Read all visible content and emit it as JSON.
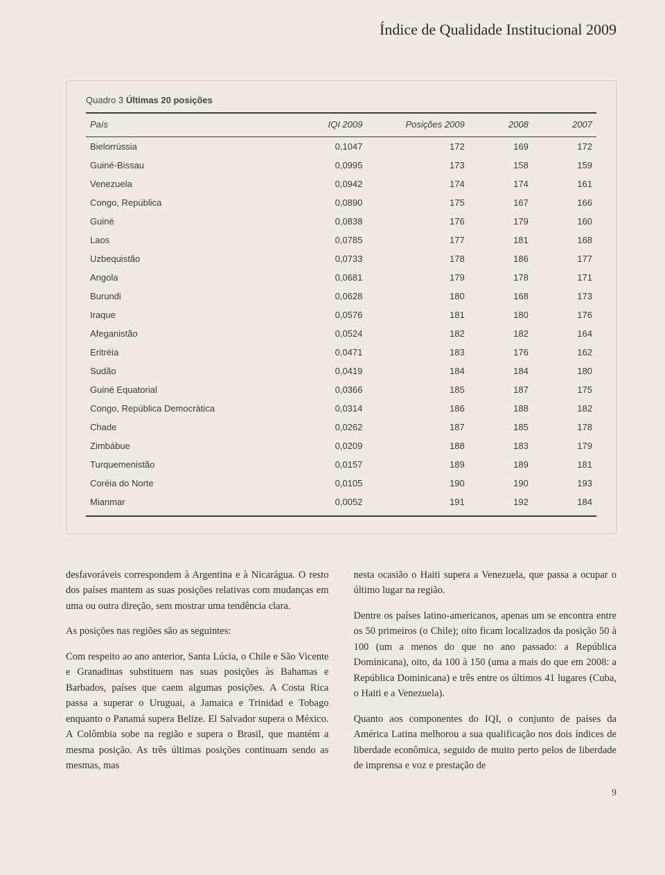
{
  "header": {
    "title": "Índice de Qualidade Institucional 2009"
  },
  "table": {
    "type": "table",
    "caption_prefix": "Quadro 3",
    "caption_title": "Últimas 20 posições",
    "columns": [
      "País",
      "IQI 2009",
      "Posições 2009",
      "2008",
      "2007"
    ],
    "rows": [
      [
        "Bielorrússia",
        "0,1047",
        "172",
        "169",
        "172"
      ],
      [
        "Guiné-Bissau",
        "0,0995",
        "173",
        "158",
        "159"
      ],
      [
        "Venezuela",
        "0,0942",
        "174",
        "174",
        "161"
      ],
      [
        "Congo, República",
        "0,0890",
        "175",
        "167",
        "166"
      ],
      [
        "Guiné",
        "0,0838",
        "176",
        "179",
        "160"
      ],
      [
        "Laos",
        "0,0785",
        "177",
        "181",
        "168"
      ],
      [
        "Uzbequistão",
        "0,0733",
        "178",
        "186",
        "177"
      ],
      [
        "Angola",
        "0,0681",
        "179",
        "178",
        "171"
      ],
      [
        "Burundi",
        "0,0628",
        "180",
        "168",
        "173"
      ],
      [
        "Iraque",
        "0,0576",
        "181",
        "180",
        "176"
      ],
      [
        "Afeganistão",
        "0,0524",
        "182",
        "182",
        "164"
      ],
      [
        "Eritréia",
        "0,0471",
        "183",
        "176",
        "162"
      ],
      [
        "Sudão",
        "0,0419",
        "184",
        "184",
        "180"
      ],
      [
        "Guiné Equatorial",
        "0,0366",
        "185",
        "187",
        "175"
      ],
      [
        "Congo, República Democrática",
        "0,0314",
        "186",
        "188",
        "182"
      ],
      [
        "Chade",
        "0,0262",
        "187",
        "185",
        "178"
      ],
      [
        "Zimbábue",
        "0,0209",
        "188",
        "183",
        "179"
      ],
      [
        "Turquemenistão",
        "0,0157",
        "189",
        "189",
        "181"
      ],
      [
        "Coréia do Norte",
        "0,0105",
        "190",
        "190",
        "193"
      ],
      [
        "Mianmar",
        "0,0052",
        "191",
        "192",
        "184"
      ]
    ],
    "border_color": "#cfc9bb",
    "rule_color": "#3a3a3a",
    "font_size": 13,
    "background": "#efebe4"
  },
  "body": {
    "left": [
      "desfavoráveis correspondem à Argentina e à Nicarágua. O resto dos países mantem as suas posições relativas com mudanças em uma ou outra direção, sem mostrar uma tendência clara.",
      "As posições nas regiões são as seguintes:",
      "Com respeito ao ano anterior, Santa Lúcia, o Chile e São Vicente e Granadinas substituem nas suas posições às Bahamas e Barbados, países que caem algumas posições. A Costa Rica passa a superar o Uruguai, a Jamaica e Trinidad e Tobago enquanto o Panamá supera Belize. El Salvador supera o México. A Colômbia sobe na região e supera o Brasil, que mantém a mesma posição. As três últimas posições continuam sendo as mesmas, mas"
    ],
    "right": [
      "nesta ocasião o Haiti supera a Venezuela, que passa a ocupar o último lugar na região.",
      "Dentre os países latino-americanos, apenas um se encontra entre os 50 primeiros (o Chile); oito ficam localizados da posição 50 à 100 (um a menos do que no ano passado: a República Dominicana), oito, da 100 à 150 (uma a mais do que em 2008: a República Dominicana) e três entre os últimos 41 lugares (Cuba, o Haiti e a Venezuela).",
      "Quanto aos componentes do IQI, o conjunto de países da América Latina melhorou a sua qualificação nos dois índices de liberdade econômica, seguido de muito perto pelos de liberdade de imprensa e voz e prestação de"
    ]
  },
  "page_number": "9",
  "colors": {
    "background": "#efebe4",
    "text": "#3a3a3a"
  }
}
